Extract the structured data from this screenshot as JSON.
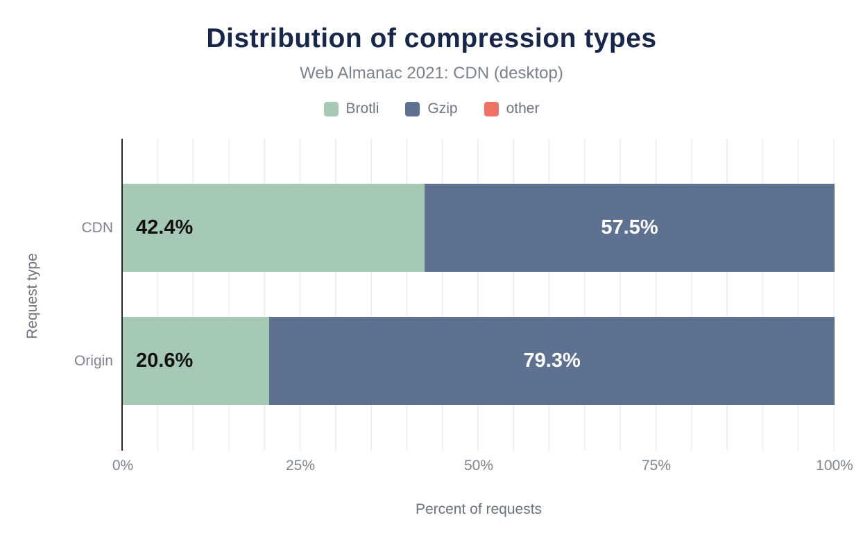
{
  "chart_data": {
    "type": "bar",
    "orientation": "horizontal",
    "stacked": true,
    "title": "Distribution of compression types",
    "subtitle": "Web Almanac 2021: CDN (desktop)",
    "xlabel": "Percent of requests",
    "ylabel": "Request type",
    "categories": [
      "CDN",
      "Origin"
    ],
    "xlim": [
      0,
      100
    ],
    "xticks": [
      {
        "label": "0%",
        "pos": 0
      },
      {
        "label": "25%",
        "pos": 25
      },
      {
        "label": "50%",
        "pos": 50
      },
      {
        "label": "75%",
        "pos": 75
      },
      {
        "label": "100%",
        "pos": 100
      }
    ],
    "grid": {
      "vertical_line_every_percent": 5,
      "color": "#efefef"
    },
    "legend_position": "top",
    "legend": [
      {
        "label": "Brotli",
        "color": "#a6c9b5"
      },
      {
        "label": "Gzip",
        "color": "#5e7190"
      },
      {
        "label": "other",
        "color": "#ee7366"
      }
    ],
    "rows": [
      {
        "category": "CDN",
        "segments": [
          {
            "series": "Brotli",
            "value": 42.4,
            "label": "42.4%"
          },
          {
            "series": "Gzip",
            "value": 57.5,
            "label": "57.5%"
          }
        ]
      },
      {
        "category": "Origin",
        "segments": [
          {
            "series": "Brotli",
            "value": 20.6,
            "label": "20.6%"
          },
          {
            "series": "Gzip",
            "value": 79.3,
            "label": "79.3%"
          }
        ]
      }
    ],
    "colors": {
      "title": "#172649",
      "subtitle": "#7c828a",
      "axis_titles": "#6c737c",
      "tick_labels": "#7e848b",
      "bar_label_on_brotli": "#111111",
      "bar_label_on_gzip": "#ffffff",
      "axis_line": "#26282b"
    }
  }
}
